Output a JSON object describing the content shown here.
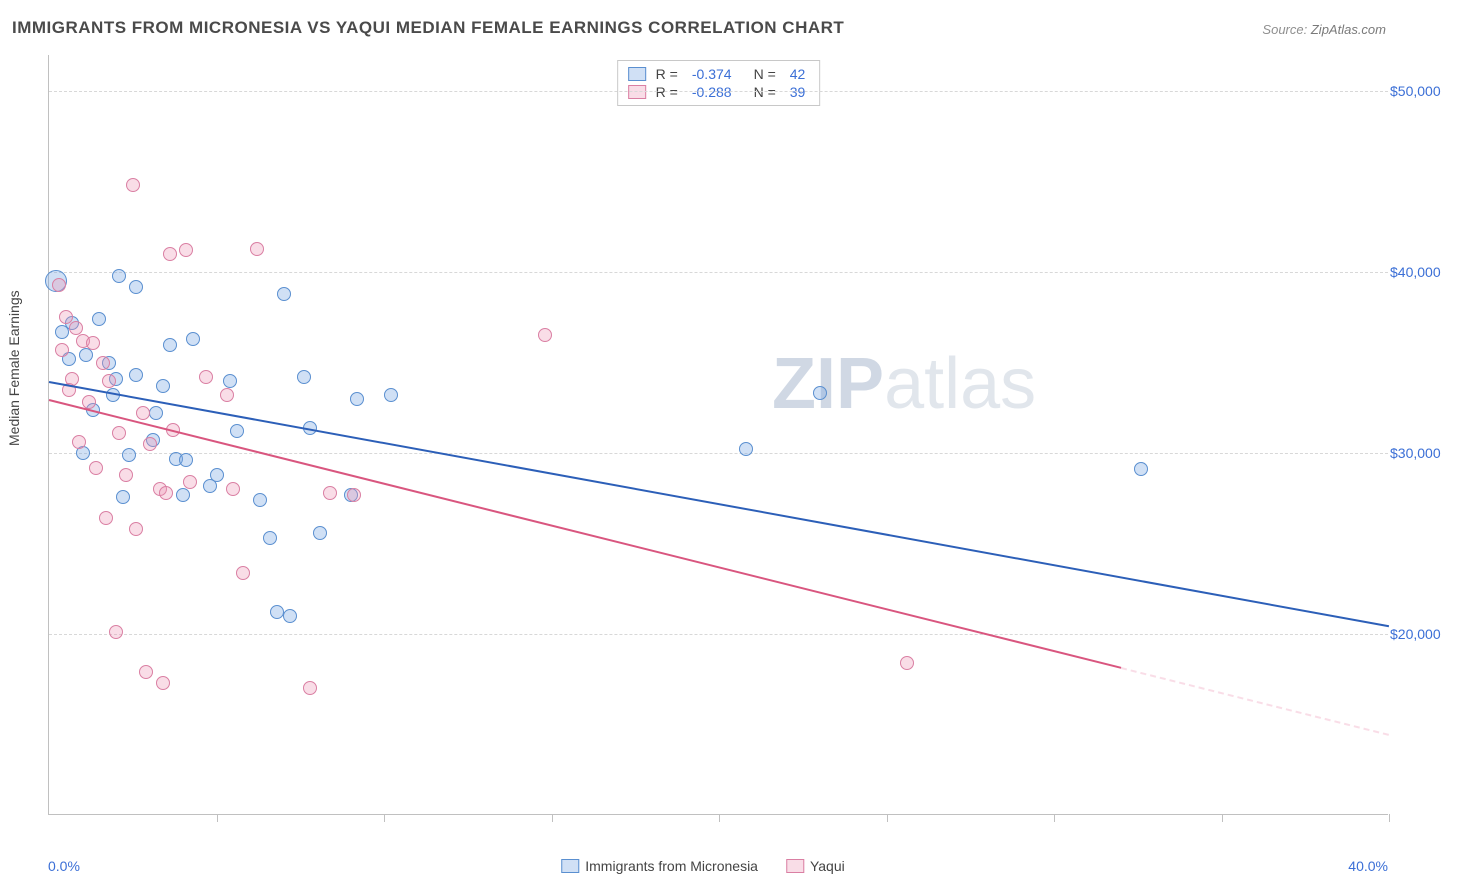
{
  "title": "IMMIGRANTS FROM MICRONESIA VS YAQUI MEDIAN FEMALE EARNINGS CORRELATION CHART",
  "source_label": "Source:",
  "source_value": "ZipAtlas.com",
  "y_axis_title": "Median Female Earnings",
  "x_min_label": "0.0%",
  "x_max_label": "40.0%",
  "watermark_text": "ZIPatlas",
  "chart": {
    "type": "scatter",
    "xlim": [
      0,
      40
    ],
    "ylim": [
      10000,
      52000
    ],
    "y_ticks": [
      20000,
      30000,
      40000,
      50000
    ],
    "y_tick_labels": [
      "$20,000",
      "$30,000",
      "$40,000",
      "$50,000"
    ],
    "x_ticks": [
      5,
      10,
      15,
      20,
      25,
      30,
      35,
      40
    ],
    "grid_color": "#d8d8d8",
    "background_color": "#ffffff",
    "axis_color": "#c0c0c0",
    "marker_radius": 7,
    "marker_border_width": 1
  },
  "series": [
    {
      "name": "Immigrants from Micronesia",
      "fill_color": "rgba(120,165,225,0.35)",
      "stroke_color": "#5a8fd0",
      "line_color": "#2c5fb8",
      "R": "-0.374",
      "N": "42",
      "regression": {
        "x1": 0,
        "y1": 34000,
        "x2": 40,
        "y2": 20500
      },
      "points": [
        {
          "x": 0.2,
          "y": 39500,
          "r": 11
        },
        {
          "x": 2.1,
          "y": 39800
        },
        {
          "x": 2.6,
          "y": 39200
        },
        {
          "x": 0.4,
          "y": 36700
        },
        {
          "x": 0.7,
          "y": 37200
        },
        {
          "x": 1.5,
          "y": 37400
        },
        {
          "x": 0.6,
          "y": 35200
        },
        {
          "x": 1.1,
          "y": 35400
        },
        {
          "x": 1.8,
          "y": 35000
        },
        {
          "x": 3.6,
          "y": 36000
        },
        {
          "x": 4.3,
          "y": 36300
        },
        {
          "x": 7.0,
          "y": 38800
        },
        {
          "x": 2.0,
          "y": 34100
        },
        {
          "x": 2.6,
          "y": 34300
        },
        {
          "x": 3.4,
          "y": 33700
        },
        {
          "x": 5.4,
          "y": 34000
        },
        {
          "x": 7.6,
          "y": 34200
        },
        {
          "x": 9.2,
          "y": 33000
        },
        {
          "x": 10.2,
          "y": 33200
        },
        {
          "x": 1.3,
          "y": 32400
        },
        {
          "x": 3.2,
          "y": 32200
        },
        {
          "x": 5.6,
          "y": 31200
        },
        {
          "x": 7.8,
          "y": 31400
        },
        {
          "x": 1.0,
          "y": 30000
        },
        {
          "x": 2.4,
          "y": 29900
        },
        {
          "x": 3.8,
          "y": 29700
        },
        {
          "x": 4.1,
          "y": 29600
        },
        {
          "x": 5.0,
          "y": 28800
        },
        {
          "x": 4.8,
          "y": 28200
        },
        {
          "x": 2.2,
          "y": 27600
        },
        {
          "x": 4.0,
          "y": 27700
        },
        {
          "x": 6.3,
          "y": 27400
        },
        {
          "x": 9.0,
          "y": 27700
        },
        {
          "x": 6.6,
          "y": 25300
        },
        {
          "x": 8.1,
          "y": 25600
        },
        {
          "x": 6.8,
          "y": 21200
        },
        {
          "x": 7.2,
          "y": 21000
        },
        {
          "x": 20.8,
          "y": 30200
        },
        {
          "x": 23.0,
          "y": 33300
        },
        {
          "x": 32.6,
          "y": 29100
        },
        {
          "x": 1.9,
          "y": 33200
        },
        {
          "x": 3.1,
          "y": 30700
        }
      ]
    },
    {
      "name": "Yaqui",
      "fill_color": "rgba(235,150,180,0.32)",
      "stroke_color": "#da7fa3",
      "line_color": "#d9567f",
      "R": "-0.288",
      "N": "39",
      "regression": {
        "x1": 0,
        "y1": 33000,
        "x2": 32,
        "y2": 18200
      },
      "dashed_extension": {
        "x1": 32,
        "y1": 18200,
        "x2": 40,
        "y2": 14500
      },
      "points": [
        {
          "x": 0.3,
          "y": 39300
        },
        {
          "x": 2.5,
          "y": 44800
        },
        {
          "x": 3.6,
          "y": 41000
        },
        {
          "x": 4.1,
          "y": 41200
        },
        {
          "x": 6.2,
          "y": 41300
        },
        {
          "x": 0.5,
          "y": 37500
        },
        {
          "x": 0.8,
          "y": 36900
        },
        {
          "x": 1.0,
          "y": 36200
        },
        {
          "x": 1.3,
          "y": 36100
        },
        {
          "x": 0.4,
          "y": 35700
        },
        {
          "x": 1.6,
          "y": 35000
        },
        {
          "x": 0.7,
          "y": 34100
        },
        {
          "x": 1.8,
          "y": 34000
        },
        {
          "x": 4.7,
          "y": 34200
        },
        {
          "x": 5.3,
          "y": 33200
        },
        {
          "x": 1.2,
          "y": 32800
        },
        {
          "x": 2.8,
          "y": 32200
        },
        {
          "x": 3.7,
          "y": 31300
        },
        {
          "x": 0.9,
          "y": 30600
        },
        {
          "x": 3.0,
          "y": 30500
        },
        {
          "x": 1.4,
          "y": 29200
        },
        {
          "x": 2.3,
          "y": 28800
        },
        {
          "x": 4.2,
          "y": 28400
        },
        {
          "x": 3.3,
          "y": 28000
        },
        {
          "x": 3.5,
          "y": 27800
        },
        {
          "x": 5.5,
          "y": 28000
        },
        {
          "x": 8.4,
          "y": 27800
        },
        {
          "x": 9.1,
          "y": 27700
        },
        {
          "x": 1.7,
          "y": 26400
        },
        {
          "x": 2.6,
          "y": 25800
        },
        {
          "x": 5.8,
          "y": 23400
        },
        {
          "x": 2.0,
          "y": 20100
        },
        {
          "x": 2.9,
          "y": 17900
        },
        {
          "x": 3.4,
          "y": 17300
        },
        {
          "x": 7.8,
          "y": 17000
        },
        {
          "x": 14.8,
          "y": 36500
        },
        {
          "x": 25.6,
          "y": 18400
        },
        {
          "x": 0.6,
          "y": 33500
        },
        {
          "x": 2.1,
          "y": 31100
        }
      ]
    }
  ],
  "legend_top": {
    "R_label": "R =",
    "N_label": "N ="
  },
  "colors": {
    "tick_label": "#3b6fd6",
    "text": "#4a4a4a"
  }
}
